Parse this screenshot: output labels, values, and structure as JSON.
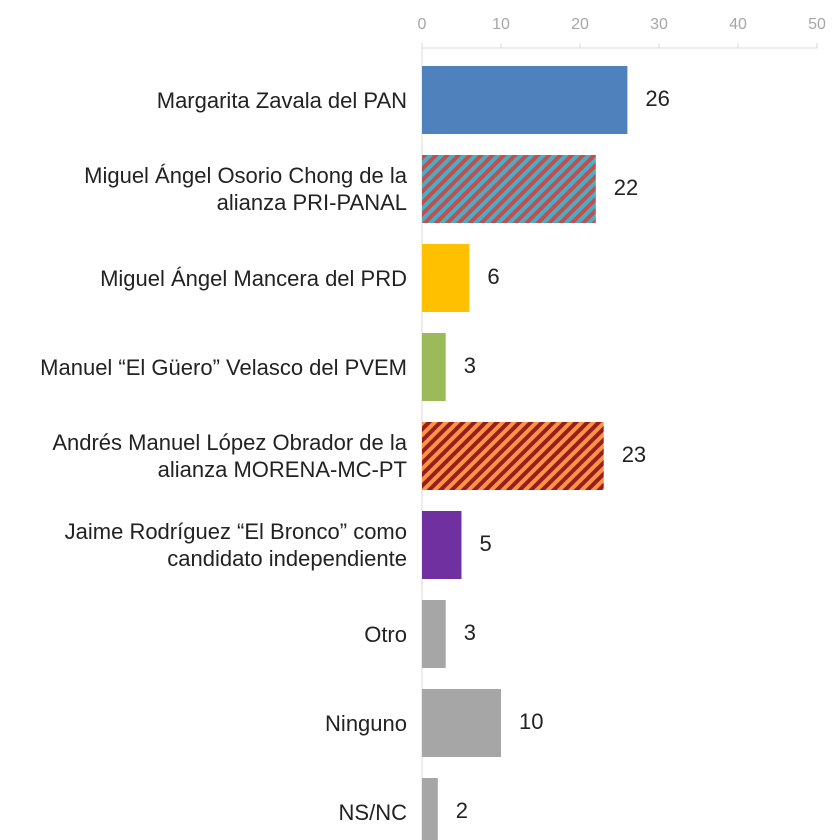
{
  "chart_data": {
    "type": "bar",
    "orientation": "horizontal",
    "categories": [
      "Margarita Zavala del PAN",
      "Miguel Ángel Osorio Chong de la alianza PRI-PANAL",
      "Miguel Ángel Mancera del PRD",
      "Manuel “El Güero” Velasco del PVEM",
      "Andrés Manuel López Obrador de la alianza MORENA-MC-PT",
      "Jaime Rodríguez “El Bronco” como candidato independiente",
      "Otro",
      "Ninguno",
      "NS/NC"
    ],
    "values": [
      26,
      22,
      6,
      3,
      23,
      5,
      3,
      10,
      2
    ],
    "colors": [
      "#4f81bd",
      [
        "#c0504d",
        "#4bacc6"
      ],
      "#ffc000",
      "#9bbb59",
      [
        "#9b1c1c",
        "#f79646"
      ],
      "#7030a0",
      "#a6a6a6",
      "#a6a6a6",
      "#a6a6a6"
    ],
    "xlim": [
      0,
      50
    ],
    "xticks": [
      0,
      10,
      20,
      30,
      40,
      50
    ]
  }
}
